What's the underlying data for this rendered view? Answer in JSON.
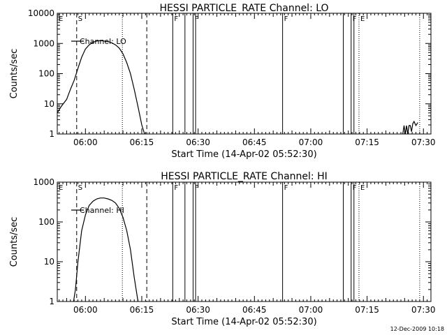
{
  "footer": {
    "date_stamp": "12-Dec-2009 10:18"
  },
  "chart_data": [
    {
      "type": "line",
      "title": "HESSI PARTICLE_RATE Channel: LO",
      "xlabel": "Start Time (14-Apr-02 05:52:30)",
      "ylabel": "Counts/sec",
      "yscale": "log",
      "xlim": [
        "05:52:30",
        "07:32:00"
      ],
      "ylim": [
        1,
        10000
      ],
      "xticks": [
        "06:00",
        "06:15",
        "06:30",
        "06:45",
        "07:00",
        "07:15",
        "07:30"
      ],
      "yticks": [
        "1",
        "10",
        "100",
        "1000",
        "10000"
      ],
      "legend": "top-left",
      "series": [
        {
          "name": "Channel: LO",
          "x": [
            "05:52:30",
            "05:53:30",
            "05:55:00",
            "05:56:00",
            "05:57:00",
            "05:58:00",
            "05:59:00",
            "06:00:00",
            "06:01:00",
            "06:02:00",
            "06:03:00",
            "06:04:00",
            "06:05:00",
            "06:06:00",
            "06:07:00",
            "06:08:00",
            "06:09:00",
            "06:10:00",
            "06:11:00",
            "06:12:00",
            "06:13:00",
            "06:14:00",
            "06:15:00",
            "06:15:45"
          ],
          "y": [
            5,
            8,
            14,
            30,
            60,
            150,
            350,
            650,
            900,
            1100,
            1200,
            1250,
            1200,
            1150,
            1050,
            900,
            700,
            450,
            230,
            100,
            30,
            8,
            2,
            1
          ]
        },
        {
          "name": "",
          "x": [
            "07:24:30",
            "07:24:50",
            "07:25:10",
            "07:25:30",
            "07:25:50",
            "07:26:10",
            "07:26:30",
            "07:26:50",
            "07:27:10",
            "07:27:30",
            "07:28:00",
            "07:28:30"
          ],
          "y": [
            1,
            1.9,
            1,
            1.9,
            1,
            1.9,
            1.9,
            1.2,
            2.2,
            2.6,
            1.9,
            2.4
          ]
        }
      ],
      "markers": [
        {
          "label": "E",
          "time": "05:52:30",
          "style": "dotted"
        },
        {
          "label": "S",
          "time": "05:57:40",
          "style": "dashed"
        },
        {
          "label": "",
          "time": "06:09:50",
          "style": "dotted"
        },
        {
          "label": "",
          "time": "06:16:20",
          "style": "dashed"
        },
        {
          "label": "F",
          "time": "06:23:15",
          "style": "solid"
        },
        {
          "label": "",
          "time": "06:26:30",
          "style": "solid"
        },
        {
          "label": "F",
          "time": "06:28:40",
          "style": "solid"
        },
        {
          "label": "",
          "time": "06:29:20",
          "style": "solid"
        },
        {
          "label": "F",
          "time": "06:52:30",
          "style": "solid"
        },
        {
          "label": "",
          "time": "07:08:40",
          "style": "solid"
        },
        {
          "label": "F",
          "time": "07:10:45",
          "style": "solid"
        },
        {
          "label": "",
          "time": "07:11:30",
          "style": "solid"
        },
        {
          "label": "E",
          "time": "07:12:50",
          "style": "dotted"
        },
        {
          "label": "",
          "time": "07:29:00",
          "style": "dotted"
        }
      ]
    },
    {
      "type": "line",
      "title": "HESSI PARTICLE_RATE Channel: HI",
      "xlabel": "Start Time (14-Apr-02 05:52:30)",
      "ylabel": "Counts/sec",
      "yscale": "log",
      "xlim": [
        "05:52:30",
        "07:32:00"
      ],
      "ylim": [
        1,
        1000
      ],
      "xticks": [
        "06:00",
        "06:15",
        "06:30",
        "06:45",
        "07:00",
        "07:15",
        "07:30"
      ],
      "yticks": [
        "1",
        "10",
        "100",
        "1000"
      ],
      "legend": "top-left",
      "series": [
        {
          "name": "Channel: HI",
          "x": [
            "05:56:50",
            "05:57:20",
            "05:58:00",
            "05:59:00",
            "06:00:00",
            "06:01:00",
            "06:02:00",
            "06:03:00",
            "06:04:00",
            "06:05:00",
            "06:06:00",
            "06:07:00",
            "06:08:00",
            "06:09:00",
            "06:10:00",
            "06:11:00",
            "06:12:00",
            "06:13:00",
            "06:14:00"
          ],
          "y": [
            1,
            2,
            10,
            60,
            150,
            260,
            330,
            380,
            400,
            400,
            380,
            350,
            300,
            220,
            130,
            60,
            20,
            4,
            1
          ]
        }
      ],
      "markers": [
        {
          "label": "E",
          "time": "05:52:30",
          "style": "dotted"
        },
        {
          "label": "S",
          "time": "05:57:40",
          "style": "dashed"
        },
        {
          "label": "",
          "time": "06:09:50",
          "style": "dotted"
        },
        {
          "label": "",
          "time": "06:16:20",
          "style": "dashed"
        },
        {
          "label": "F",
          "time": "06:23:15",
          "style": "solid"
        },
        {
          "label": "",
          "time": "06:26:30",
          "style": "solid"
        },
        {
          "label": "F",
          "time": "06:28:40",
          "style": "solid"
        },
        {
          "label": "",
          "time": "06:29:20",
          "style": "solid"
        },
        {
          "label": "F",
          "time": "06:52:30",
          "style": "solid"
        },
        {
          "label": "",
          "time": "07:08:40",
          "style": "solid"
        },
        {
          "label": "F",
          "time": "07:10:45",
          "style": "solid"
        },
        {
          "label": "",
          "time": "07:11:30",
          "style": "solid"
        },
        {
          "label": "E",
          "time": "07:12:50",
          "style": "dotted"
        },
        {
          "label": "",
          "time": "07:29:00",
          "style": "dotted"
        }
      ]
    }
  ]
}
